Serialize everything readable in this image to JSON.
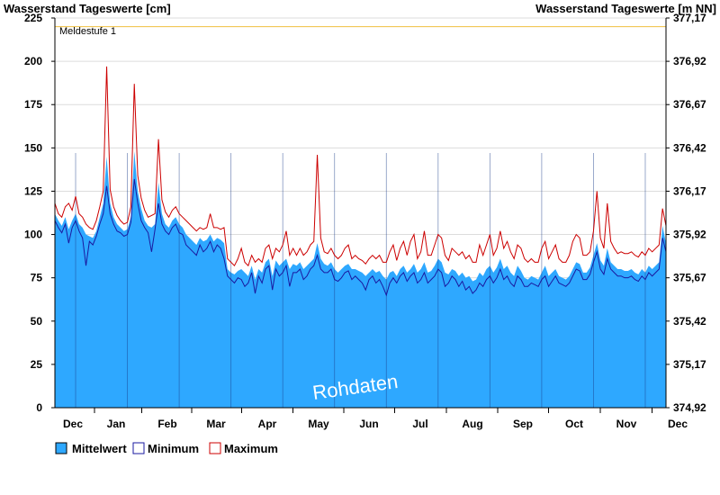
{
  "chart_data": {
    "type": "area",
    "title_left": "Wasserstand Tageswerte [cm]",
    "title_right": "Wasserstand Tageswerte [m NN]",
    "ylim": [
      0,
      225
    ],
    "y_ticks": [
      0,
      25,
      50,
      75,
      100,
      125,
      150,
      175,
      200,
      225
    ],
    "y2_ticks": [
      "374,92",
      "375,17",
      "375,42",
      "375,67",
      "375,92",
      "376,17",
      "376,42",
      "376,67",
      "376,92",
      "377,17"
    ],
    "months": [
      "Dec",
      "Jan",
      "Feb",
      "Mar",
      "Apr",
      "May",
      "Jun",
      "Jul",
      "Aug",
      "Sep",
      "Oct",
      "Nov",
      "Dec"
    ],
    "threshold": {
      "label": "Meldestufe 1",
      "value": 220,
      "color": "#f0c040"
    },
    "watermark": "Rohdaten",
    "grid": true,
    "legend_position": "bottom-left",
    "series": [
      {
        "name": "Mittelwert",
        "color": "#2ea8ff",
        "kind": "area",
        "values": [
          112,
          108,
          105,
          110,
          103,
          108,
          112,
          106,
          104,
          100,
          99,
          98,
          102,
          110,
          118,
          145,
          118,
          110,
          106,
          104,
          102,
          103,
          110,
          148,
          125,
          115,
          108,
          105,
          104,
          106,
          130,
          112,
          106,
          104,
          108,
          110,
          106,
          104,
          100,
          98,
          96,
          94,
          98,
          96,
          97,
          100,
          96,
          98,
          97,
          95,
          80,
          78,
          77,
          79,
          80,
          78,
          76,
          82,
          74,
          80,
          78,
          84,
          86,
          76,
          85,
          82,
          84,
          86,
          80,
          83,
          82,
          84,
          80,
          82,
          84,
          86,
          95,
          86,
          83,
          82,
          84,
          80,
          78,
          80,
          82,
          83,
          80,
          80,
          79,
          78,
          76,
          78,
          80,
          78,
          79,
          76,
          74,
          78,
          79,
          76,
          80,
          82,
          78,
          80,
          83,
          78,
          80,
          84,
          78,
          79,
          82,
          86,
          84,
          78,
          77,
          80,
          79,
          76,
          78,
          75,
          76,
          73,
          74,
          78,
          76,
          80,
          82,
          78,
          81,
          86,
          80,
          82,
          78,
          76,
          82,
          79,
          75,
          74,
          76,
          75,
          74,
          78,
          82,
          76,
          78,
          80,
          76,
          75,
          74,
          76,
          80,
          84,
          83,
          78,
          78,
          81,
          88,
          95,
          85,
          82,
          92,
          84,
          82,
          80,
          80,
          79,
          79,
          80,
          78,
          77,
          80,
          78,
          82,
          80,
          82,
          84,
          105,
          95
        ]
      },
      {
        "name": "Minimum",
        "color": "#1a1aa0",
        "kind": "line",
        "values": [
          108,
          104,
          101,
          106,
          95,
          104,
          108,
          102,
          98,
          82,
          96,
          94,
          99,
          106,
          112,
          128,
          112,
          106,
          102,
          101,
          99,
          100,
          107,
          132,
          118,
          108,
          104,
          101,
          90,
          103,
          118,
          106,
          102,
          100,
          104,
          106,
          101,
          100,
          94,
          92,
          90,
          88,
          94,
          90,
          92,
          96,
          90,
          94,
          92,
          86,
          76,
          74,
          72,
          75,
          74,
          70,
          72,
          78,
          66,
          76,
          72,
          80,
          82,
          68,
          80,
          76,
          78,
          82,
          70,
          78,
          78,
          80,
          74,
          76,
          80,
          82,
          88,
          80,
          78,
          78,
          80,
          74,
          73,
          75,
          78,
          79,
          74,
          76,
          74,
          72,
          68,
          74,
          76,
          72,
          74,
          70,
          65,
          72,
          75,
          72,
          76,
          78,
          73,
          76,
          78,
          72,
          74,
          78,
          72,
          74,
          76,
          80,
          78,
          70,
          72,
          76,
          74,
          70,
          73,
          68,
          70,
          66,
          68,
          72,
          70,
          74,
          76,
          72,
          75,
          80,
          74,
          76,
          72,
          70,
          76,
          74,
          70,
          70,
          72,
          71,
          70,
          74,
          76,
          70,
          73,
          76,
          72,
          71,
          70,
          72,
          76,
          80,
          79,
          74,
          74,
          77,
          84,
          90,
          80,
          77,
          86,
          80,
          78,
          76,
          76,
          75,
          75,
          76,
          74,
          73,
          76,
          74,
          78,
          76,
          78,
          80,
          98,
          90
        ]
      },
      {
        "name": "Maximum",
        "color": "#cc0000",
        "kind": "line",
        "values": [
          118,
          112,
          110,
          116,
          118,
          114,
          122,
          112,
          110,
          106,
          104,
          103,
          108,
          116,
          125,
          197,
          126,
          116,
          111,
          108,
          106,
          107,
          116,
          187,
          134,
          121,
          114,
          110,
          111,
          112,
          155,
          120,
          113,
          110,
          114,
          116,
          112,
          110,
          108,
          106,
          104,
          102,
          104,
          103,
          104,
          112,
          104,
          104,
          103,
          104,
          86,
          84,
          82,
          86,
          92,
          84,
          82,
          88,
          84,
          86,
          84,
          92,
          94,
          86,
          92,
          90,
          94,
          102,
          88,
          92,
          88,
          92,
          88,
          90,
          94,
          96,
          146,
          98,
          90,
          89,
          92,
          88,
          86,
          88,
          92,
          94,
          86,
          88,
          86,
          85,
          83,
          86,
          88,
          86,
          88,
          84,
          84,
          90,
          94,
          85,
          92,
          96,
          88,
          96,
          100,
          86,
          90,
          102,
          88,
          88,
          94,
          100,
          98,
          88,
          85,
          92,
          90,
          88,
          90,
          86,
          88,
          84,
          84,
          94,
          88,
          94,
          100,
          88,
          92,
          102,
          92,
          96,
          90,
          86,
          94,
          92,
          86,
          84,
          86,
          84,
          84,
          92,
          96,
          86,
          90,
          94,
          86,
          84,
          84,
          88,
          96,
          100,
          98,
          88,
          88,
          90,
          102,
          125,
          98,
          92,
          118,
          96,
          92,
          89,
          90,
          89,
          89,
          90,
          88,
          87,
          90,
          88,
          92,
          90,
          92,
          94,
          115,
          105
        ]
      }
    ]
  }
}
